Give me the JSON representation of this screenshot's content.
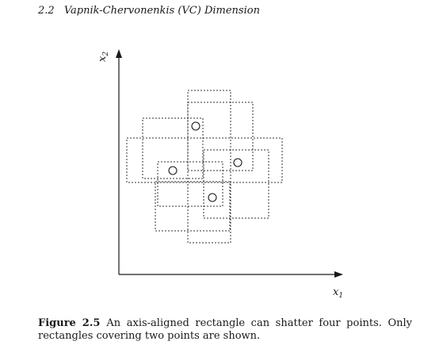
{
  "header": {
    "section": "2.2",
    "title": "Vapnik-Chervonenkis (VC) Dimension"
  },
  "figure": {
    "x_axis_label": "x",
    "x_axis_subscript": "1",
    "y_axis_label": "x",
    "y_axis_subscript": "2",
    "points": [
      {
        "x": 247,
        "y": 159
      },
      {
        "x": 300,
        "y": 205
      },
      {
        "x": 218,
        "y": 215
      },
      {
        "x": 268,
        "y": 249
      }
    ],
    "rectangles": [
      {
        "x": 237,
        "y": 114,
        "w": 54,
        "h": 192
      },
      {
        "x": 160,
        "y": 174,
        "w": 196,
        "h": 56
      },
      {
        "x": 180,
        "y": 149,
        "w": 76,
        "h": 76
      },
      {
        "x": 237,
        "y": 129,
        "w": 82,
        "h": 86
      },
      {
        "x": 199,
        "y": 204,
        "w": 82,
        "h": 56
      },
      {
        "x": 257,
        "y": 189,
        "w": 82,
        "h": 86
      },
      {
        "x": 196,
        "y": 229,
        "w": 94,
        "h": 62
      }
    ]
  },
  "caption": {
    "label": "Figure 2.5",
    "text": "An axis-aligned rectangle can shatter four points. Only rectangles covering two points are shown."
  }
}
